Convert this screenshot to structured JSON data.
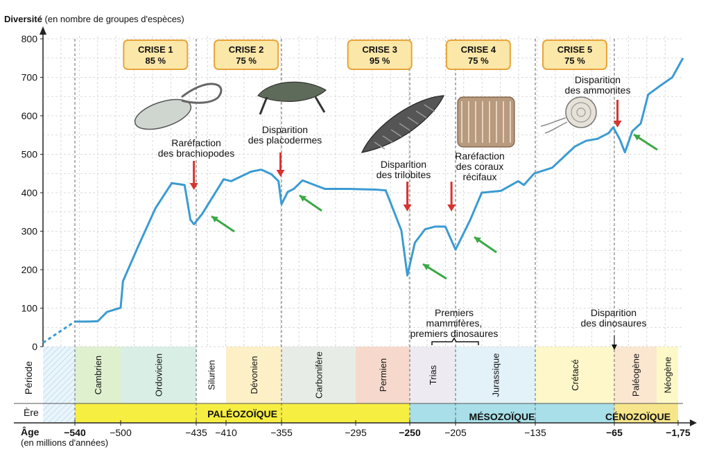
{
  "chart_data": {
    "type": "line",
    "title": "Diversité",
    "ylabel_unit": "(en nombre de groupes d'espèces)",
    "ylim": [
      0,
      800
    ],
    "y_ticks": [
      "0",
      "100",
      "200",
      "300",
      "400",
      "500",
      "600",
      "700",
      "800"
    ],
    "x_ticks": [
      "−540",
      "−500",
      "−435",
      "−410",
      "−355",
      "−295",
      "−250",
      "−205",
      "−135",
      "−65",
      "−1,75"
    ],
    "xlabel": "Âge",
    "xlabel_unit": "(en millions d'années)",
    "series": [
      {
        "dashed_start": [
          [
            -551,
            10
          ],
          [
            -540,
            65
          ]
        ],
        "points": [
          [
            -540,
            65
          ],
          [
            -530,
            65
          ],
          [
            -520,
            66
          ],
          [
            -512,
            90
          ],
          [
            -500,
            101
          ],
          [
            -498,
            170
          ],
          [
            -485,
            260
          ],
          [
            -470,
            360
          ],
          [
            -456,
            425
          ],
          [
            -445,
            420
          ],
          [
            -440,
            330
          ],
          [
            -437,
            318
          ],
          [
            -430,
            345
          ],
          [
            -412,
            435
          ],
          [
            -405,
            430
          ],
          [
            -385,
            455
          ],
          [
            -375,
            460
          ],
          [
            -365,
            448
          ],
          [
            -358,
            430
          ],
          [
            -355,
            370
          ],
          [
            -350,
            402
          ],
          [
            -345,
            410
          ],
          [
            -338,
            432
          ],
          [
            -320,
            410
          ],
          [
            -300,
            410
          ],
          [
            -290,
            409
          ],
          [
            -278,
            408
          ],
          [
            -270,
            406
          ],
          [
            -257,
            302
          ],
          [
            -252,
            185
          ],
          [
            -245,
            270
          ],
          [
            -235,
            305
          ],
          [
            -225,
            312
          ],
          [
            -215,
            312
          ],
          [
            -205,
            252
          ],
          [
            -192,
            330
          ],
          [
            -182,
            400
          ],
          [
            -165,
            405
          ],
          [
            -150,
            430
          ],
          [
            -145,
            420
          ],
          [
            -136,
            450
          ],
          [
            -120,
            465
          ],
          [
            -100,
            520
          ],
          [
            -90,
            535
          ],
          [
            -80,
            540
          ],
          [
            -70,
            555
          ],
          [
            -66,
            570
          ],
          [
            -60,
            540
          ],
          [
            -55,
            505
          ],
          [
            -48,
            560
          ],
          [
            -40,
            580
          ],
          [
            -33,
            655
          ],
          [
            -20,
            680
          ],
          [
            -8,
            700
          ],
          [
            0,
            750
          ]
        ]
      }
    ],
    "crises": [
      {
        "label": "CRISE 1",
        "percent": "85 %"
      },
      {
        "label": "CRISE 2",
        "percent": "75 %"
      },
      {
        "label": "CRISE 3",
        "percent": "95 %"
      },
      {
        "label": "CRISE 4",
        "percent": "75 %"
      },
      {
        "label": "CRISE 5",
        "percent": "75 %"
      }
    ],
    "annotations": [
      {
        "lines": [
          "Raréfaction",
          "des brachiopodes"
        ]
      },
      {
        "lines": [
          "Disparition",
          "des placodermes"
        ]
      },
      {
        "lines": [
          "Disparition",
          "des trilobites"
        ]
      },
      {
        "lines": [
          "Raréfaction",
          "des coraux",
          "récifaux"
        ]
      },
      {
        "lines": [
          "Disparition",
          "des ammonites"
        ]
      },
      {
        "lines": [
          "Premiers",
          "mammifères,",
          "premiers dinosaures"
        ]
      },
      {
        "lines": [
          "Disparition",
          "des dinosaures"
        ]
      }
    ],
    "periods_label": "Période",
    "era_label": "Ère",
    "periods": [
      {
        "name": "Cambrien",
        "start": -540,
        "end": -500,
        "color": "#dff0cf"
      },
      {
        "name": "Ordovicien",
        "start": -500,
        "end": -435,
        "color": "#d9efe6"
      },
      {
        "name": "Silurien",
        "start": -435,
        "end": -410,
        "color": "#ffffff"
      },
      {
        "name": "Dévonien",
        "start": -410,
        "end": -355,
        "color": "#fdf0c7"
      },
      {
        "name": "Carbonifère",
        "start": -355,
        "end": -295,
        "color": "#e8ece6"
      },
      {
        "name": "Permien",
        "start": -295,
        "end": -250,
        "color": "#f6d9cc"
      },
      {
        "name": "Trias",
        "start": -250,
        "end": -205,
        "color": "#eeeaf2"
      },
      {
        "name": "Jurassique",
        "start": -205,
        "end": -135,
        "color": "#e3f2f8"
      },
      {
        "name": "Crétacé",
        "start": -135,
        "end": -65,
        "color": "#fdf7c9"
      },
      {
        "name": "Paléogène",
        "start": -65,
        "end": -25,
        "color": "#fbe7d0"
      },
      {
        "name": "Néogène",
        "start": -25,
        "end": -1.75,
        "color": "#fdf8c8"
      }
    ],
    "eras": [
      {
        "name": "PALÉOZOÏQUE",
        "start": -540,
        "end": -250,
        "color": "#f7ee42"
      },
      {
        "name": "MÉSOZOÏQUE",
        "start": -250,
        "end": -65,
        "color": "#a8dfe8"
      },
      {
        "name": "CÉNOZOÏQUE",
        "start": -65,
        "end": -1.75,
        "color": "#f6e58a"
      }
    ],
    "colors": {
      "line": "#3b9bd1",
      "red_arrow": "#d8332f",
      "green_arrow": "#3aa845",
      "crisis_box": "#fbe7a8",
      "crisis_border": "#e8a43a",
      "crisis_text": "#c8322b"
    },
    "grid": true
  }
}
